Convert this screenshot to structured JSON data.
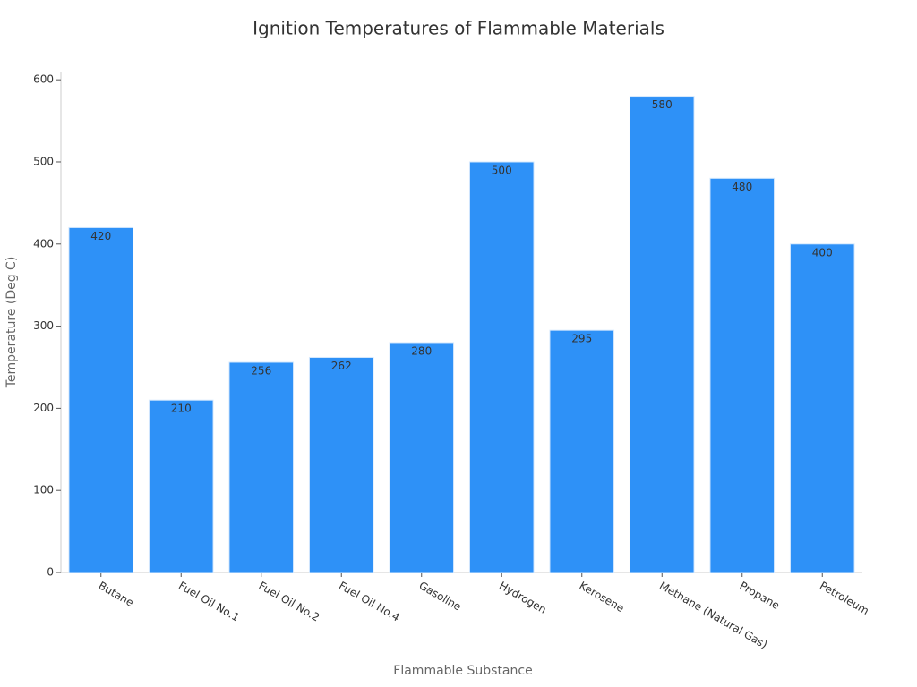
{
  "chart_data": {
    "type": "bar",
    "title": "Ignition Temperatures of Flammable Materials",
    "x_label": "Flammable Substance",
    "y_label": "Temperature (Deg C)",
    "categories": [
      "Butane",
      "Fuel Oil No.1",
      "Fuel Oil No.2",
      "Fuel Oil No.4",
      "Gasoline",
      "Hydrogen",
      "Kerosene",
      "Methane (Natural Gas)",
      "Propane",
      "Petroleum"
    ],
    "values": [
      420,
      210,
      256,
      262,
      280,
      500,
      295,
      580,
      480,
      400
    ],
    "color": "#2e91f7",
    "ylim": [
      0,
      610
    ],
    "yticks": [
      0,
      100,
      200,
      300,
      400,
      500,
      600
    ],
    "grid": false
  }
}
